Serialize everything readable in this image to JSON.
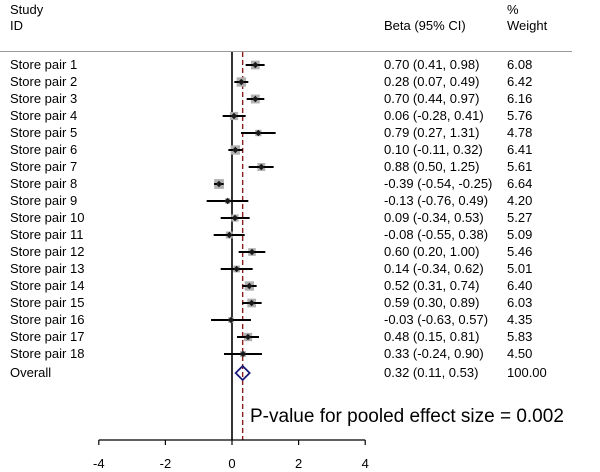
{
  "header": {
    "study": "Study",
    "id": "ID",
    "ci": "Beta (95% CI)",
    "pct": "%",
    "weight": "Weight"
  },
  "footnote": "P-value for pooled effect size = 0.002",
  "chart_data": {
    "type": "forest",
    "null_line": 0,
    "pooled_line": 0.32,
    "xlim": [
      -5,
      5
    ],
    "xticks": [
      "-4",
      "-2",
      "0",
      "2",
      "4"
    ],
    "rows": [
      {
        "label": "Store pair 1",
        "est": 0.7,
        "lo": 0.41,
        "hi": 0.98,
        "ci_text": "0.70 (0.41, 0.98)",
        "weight": "6.08"
      },
      {
        "label": "Store pair 2",
        "est": 0.28,
        "lo": 0.07,
        "hi": 0.49,
        "ci_text": "0.28 (0.07, 0.49)",
        "weight": "6.42"
      },
      {
        "label": "Store pair 3",
        "est": 0.7,
        "lo": 0.44,
        "hi": 0.97,
        "ci_text": "0.70 (0.44, 0.97)",
        "weight": "6.16"
      },
      {
        "label": "Store pair 4",
        "est": 0.06,
        "lo": -0.28,
        "hi": 0.41,
        "ci_text": "0.06 (-0.28, 0.41)",
        "weight": "5.76"
      },
      {
        "label": "Store pair 5",
        "est": 0.79,
        "lo": 0.27,
        "hi": 1.31,
        "ci_text": "0.79 (0.27, 1.31)",
        "weight": "4.78"
      },
      {
        "label": "Store pair 6",
        "est": 0.1,
        "lo": -0.11,
        "hi": 0.32,
        "ci_text": "0.10 (-0.11, 0.32)",
        "weight": "6.41"
      },
      {
        "label": "Store pair 7",
        "est": 0.88,
        "lo": 0.5,
        "hi": 1.25,
        "ci_text": "0.88 (0.50, 1.25)",
        "weight": "5.61"
      },
      {
        "label": "Store pair 8",
        "est": -0.39,
        "lo": -0.54,
        "hi": -0.25,
        "ci_text": "-0.39 (-0.54, -0.25)",
        "weight": "6.64"
      },
      {
        "label": "Store pair 9",
        "est": -0.13,
        "lo": -0.76,
        "hi": 0.49,
        "ci_text": "-0.13 (-0.76, 0.49)",
        "weight": "4.20"
      },
      {
        "label": "Store pair 10",
        "est": 0.09,
        "lo": -0.34,
        "hi": 0.53,
        "ci_text": "0.09 (-0.34, 0.53)",
        "weight": "5.27"
      },
      {
        "label": "Store pair 11",
        "est": -0.08,
        "lo": -0.55,
        "hi": 0.38,
        "ci_text": "-0.08 (-0.55, 0.38)",
        "weight": "5.09"
      },
      {
        "label": "Store pair 12",
        "est": 0.6,
        "lo": 0.2,
        "hi": 1.0,
        "ci_text": "0.60 (0.20, 1.00)",
        "weight": "5.46"
      },
      {
        "label": "Store pair 13",
        "est": 0.14,
        "lo": -0.34,
        "hi": 0.62,
        "ci_text": "0.14 (-0.34, 0.62)",
        "weight": "5.01"
      },
      {
        "label": "Store pair 14",
        "est": 0.52,
        "lo": 0.31,
        "hi": 0.74,
        "ci_text": "0.52 (0.31, 0.74)",
        "weight": "6.40"
      },
      {
        "label": "Store pair 15",
        "est": 0.59,
        "lo": 0.3,
        "hi": 0.89,
        "ci_text": "0.59 (0.30, 0.89)",
        "weight": "6.03"
      },
      {
        "label": "Store pair 16",
        "est": -0.03,
        "lo": -0.63,
        "hi": 0.57,
        "ci_text": "-0.03 (-0.63, 0.57)",
        "weight": "4.35"
      },
      {
        "label": "Store pair 17",
        "est": 0.48,
        "lo": 0.15,
        "hi": 0.81,
        "ci_text": "0.48 (0.15, 0.81)",
        "weight": "5.83"
      },
      {
        "label": "Store pair 18",
        "est": 0.33,
        "lo": -0.24,
        "hi": 0.9,
        "ci_text": "0.33 (-0.24, 0.90)",
        "weight": "4.50"
      }
    ],
    "overall": {
      "label": "Overall",
      "est": 0.32,
      "lo": 0.11,
      "hi": 0.53,
      "ci_text": "0.32 (0.11, 0.53)",
      "weight": "100.00"
    },
    "colors": {
      "marker": "#1a1a1a",
      "box": "#b0b0b0",
      "line": "#000000",
      "pooled_line": "#8b1a1a",
      "diamond": "#1a1a7a"
    }
  }
}
